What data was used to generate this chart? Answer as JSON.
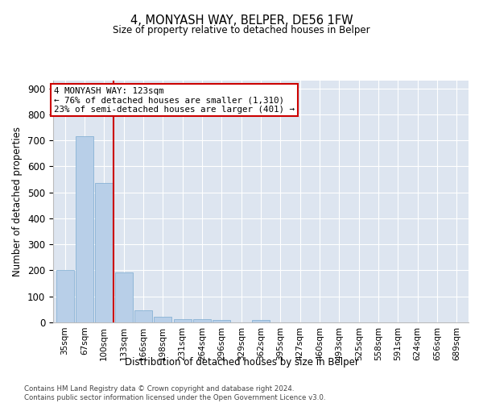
{
  "title": "4, MONYASH WAY, BELPER, DE56 1FW",
  "subtitle": "Size of property relative to detached houses in Belper",
  "xlabel": "Distribution of detached houses by size in Belper",
  "ylabel": "Number of detached properties",
  "categories": [
    "35sqm",
    "67sqm",
    "100sqm",
    "133sqm",
    "166sqm",
    "198sqm",
    "231sqm",
    "264sqm",
    "296sqm",
    "329sqm",
    "362sqm",
    "395sqm",
    "427sqm",
    "460sqm",
    "493sqm",
    "525sqm",
    "558sqm",
    "591sqm",
    "624sqm",
    "656sqm",
    "689sqm"
  ],
  "values": [
    200,
    715,
    535,
    192,
    48,
    22,
    13,
    11,
    8,
    0,
    10,
    0,
    0,
    0,
    0,
    0,
    0,
    0,
    0,
    0,
    0
  ],
  "bar_color": "#b8cfe8",
  "bar_edge_color": "#7aaad0",
  "vline_x": 2.5,
  "vline_color": "#cc0000",
  "annotation_text": "4 MONYASH WAY: 123sqm\n← 76% of detached houses are smaller (1,310)\n23% of semi-detached houses are larger (401) →",
  "annotation_box_facecolor": "#ffffff",
  "annotation_box_edgecolor": "#cc0000",
  "ylim": [
    0,
    930
  ],
  "yticks": [
    0,
    100,
    200,
    300,
    400,
    500,
    600,
    700,
    800,
    900
  ],
  "bg_color": "#dde5f0",
  "grid_color": "#ffffff",
  "footnote": "Contains HM Land Registry data © Crown copyright and database right 2024.\nContains public sector information licensed under the Open Government Licence v3.0."
}
